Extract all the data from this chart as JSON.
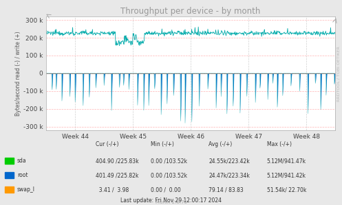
{
  "title": "Throughput per device - by month",
  "ylabel": "Bytes/second read (-) / write (+)",
  "x_tick_labels": [
    "Week 44",
    "Week 45",
    "Week 46",
    "Week 47",
    "Week 48"
  ],
  "ylim": [
    -320000,
    320000
  ],
  "yticks": [
    -300000,
    -200000,
    -100000,
    0,
    100000,
    200000,
    300000
  ],
  "ytick_labels": [
    "-300 k",
    "-200 k",
    "-100 k",
    "0",
    "100 k",
    "200 k",
    "300 k"
  ],
  "bg_color": "#e8e8e8",
  "plot_bg_color": "#ffffff",
  "grid_color_h": "#ffaaaa",
  "grid_color_v": "#cccccc",
  "line_color": "#006080",
  "line_color2": "#00aaaa",
  "swap_color": "#ff9900",
  "sda_color": "#00cc00",
  "root_color": "#0066cc",
  "title_color": "#999999",
  "legend_text": [
    [
      "sda",
      "404.90 /225.83k",
      "0.00 /103.52k",
      "24.55k/223.42k",
      "5.12M/941.47k"
    ],
    [
      "root",
      "401.49 /225.82k",
      "0.00 /103.52k",
      "24.47k/223.34k",
      "5.12M/941.42k"
    ],
    [
      "swap_l",
      "  3.41 /  3.98",
      "0.00 /  0.00",
      "79.14 / 83.83",
      "51.54k/ 22.70k"
    ]
  ],
  "footer": "Last update: Fri Nov 29 12:00:17 2024",
  "watermark": "Munin 2.0.75",
  "rrdtool_label": "RRDTOOL / TOBI OETIKER",
  "n_points": 700,
  "baseline_write": 225000,
  "spike_down_magnitude": 130000
}
